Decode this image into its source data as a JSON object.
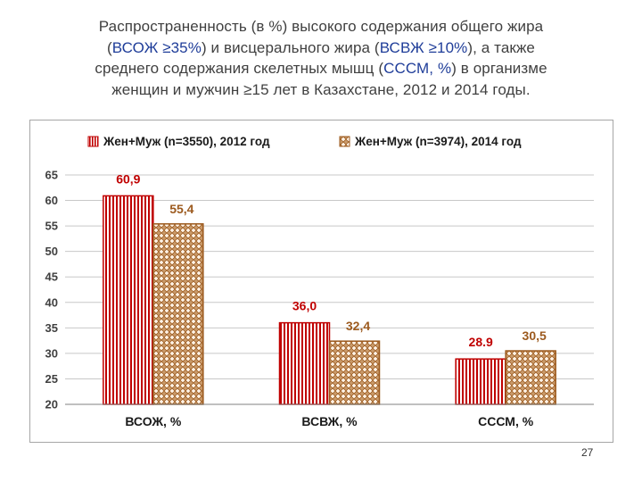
{
  "title": {
    "line1": "Распространенность (в %) высокого содержания общего жира",
    "line2_pre": "(",
    "line2_hl1": "ВСОЖ ≥35%",
    "line2_mid": ") и висцерального жира (",
    "line2_hl2": "ВСВЖ ≥10%",
    "line2_post": "), а также",
    "line3_pre": "среднего содержания скелетных мышц (",
    "line3_hl": "СССМ, %",
    "line3_post": ") в организме",
    "line4": "женщин и мужчин ≥15 лет в Казахстане, 2012 и 2014 годы."
  },
  "page_number": "27",
  "chart_data": {
    "type": "bar",
    "categories": [
      "ВСОЖ, %",
      "ВСВЖ, %",
      "СССМ, %"
    ],
    "series": [
      {
        "name": "Жен+Муж (n=3550), 2012 год",
        "values": [
          60.9,
          36.0,
          28.9
        ],
        "labels": [
          "60,9",
          "36,0",
          "28.9"
        ],
        "color": "#c00000",
        "pattern": "vertical-stripes"
      },
      {
        "name": "Жен+Муж (n=3974), 2014 год",
        "values": [
          55.4,
          32.4,
          30.5
        ],
        "labels": [
          "55,4",
          "32,4",
          "30,5"
        ],
        "color": "#9c5a1e",
        "pattern": "checker"
      }
    ],
    "yticks": [
      "20",
      "25",
      "30",
      "35",
      "40",
      "45",
      "50",
      "55",
      "60",
      "65"
    ],
    "ylim": [
      20,
      65
    ],
    "grid": true,
    "legend_position": "top",
    "label_colors": [
      "#c00000",
      "#9c5a1e"
    ]
  }
}
